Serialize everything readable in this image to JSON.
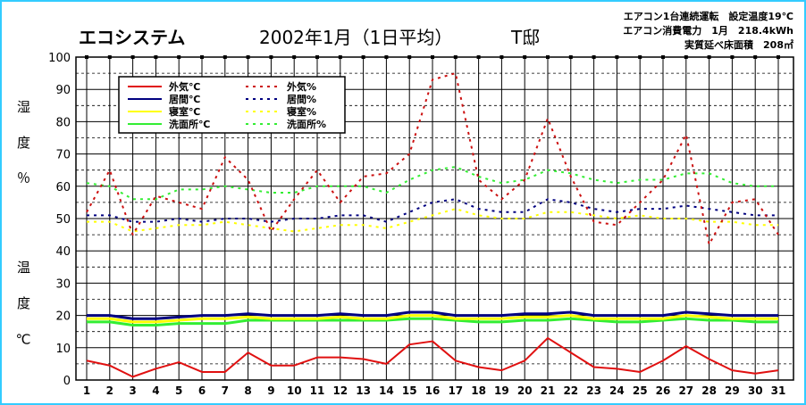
{
  "header": {
    "brand": "エコシステム",
    "title": "2002年1月（1日平均）",
    "house": "T邸",
    "notes": [
      "エアコン1台連続運転　設定温度19℃",
      "エアコン消費電力　1月　218.4kWh",
      "実質延べ床面積　208㎡"
    ]
  },
  "chart_data": {
    "type": "line",
    "ylabel_top": "湿 度 ％",
    "ylabel_bottom": "温 度 ℃",
    "ylim": [
      0,
      100
    ],
    "yticks": [
      0,
      10,
      20,
      30,
      40,
      50,
      60,
      70,
      80,
      90,
      100
    ],
    "x": [
      1,
      2,
      3,
      4,
      5,
      6,
      7,
      8,
      9,
      10,
      11,
      12,
      13,
      14,
      15,
      16,
      17,
      18,
      19,
      20,
      21,
      22,
      23,
      24,
      25,
      26,
      27,
      28,
      29,
      30,
      31
    ],
    "grid": true,
    "legend_position": "top-left",
    "series": [
      {
        "name": "外気℃",
        "kind": "temperature",
        "style": "solid",
        "color": "#e01010",
        "values": [
          6,
          4.5,
          1,
          3.5,
          5.5,
          2.5,
          2.5,
          8.5,
          4.5,
          4.5,
          7,
          7,
          6.5,
          5,
          11,
          12,
          6,
          4,
          3,
          6,
          13,
          8.5,
          4,
          3.5,
          2.5,
          6,
          10.5,
          6.5,
          3,
          2,
          3
        ]
      },
      {
        "name": "居間℃",
        "kind": "temperature",
        "style": "solid",
        "color": "#000080",
        "values": [
          20,
          20,
          19,
          19,
          19.5,
          20,
          20,
          20.5,
          20,
          20,
          20,
          20.5,
          20,
          20,
          21,
          21,
          20,
          20,
          20,
          20.5,
          20.5,
          21,
          20,
          20,
          20,
          20,
          21,
          20.5,
          20,
          20,
          20
        ]
      },
      {
        "name": "寝室℃",
        "kind": "temperature",
        "style": "solid",
        "color": "#ffff00",
        "values": [
          19,
          19,
          18,
          18,
          18.5,
          19,
          19,
          19.5,
          19,
          19,
          19,
          19.5,
          19,
          19,
          20,
          20,
          19,
          19,
          19,
          19.5,
          19.5,
          20,
          19,
          19,
          19,
          19,
          20,
          19.5,
          19,
          19,
          19
        ]
      },
      {
        "name": "洗面所℃",
        "kind": "temperature",
        "style": "solid",
        "color": "#33ee33",
        "values": [
          18,
          18,
          17,
          17,
          17.5,
          17.5,
          17.5,
          18.5,
          18.5,
          18.5,
          18.5,
          18.5,
          18.5,
          18.5,
          19,
          19,
          18.5,
          18,
          18,
          18.5,
          18.5,
          19,
          18.5,
          18,
          18,
          18.5,
          19,
          18.5,
          18.5,
          18,
          18
        ]
      },
      {
        "name": "外気%",
        "kind": "humidity",
        "style": "dotted",
        "color": "#cc1010",
        "values": [
          52,
          65,
          45,
          57,
          55,
          53,
          69,
          62,
          46,
          56,
          65,
          55,
          63,
          64,
          70,
          93,
          95,
          62,
          56,
          62,
          81,
          63,
          49,
          48,
          55,
          62,
          76,
          42,
          55,
          56,
          45
        ]
      },
      {
        "name": "居間%",
        "kind": "humidity",
        "style": "dotted",
        "color": "#000080",
        "values": [
          51,
          51,
          49,
          49,
          50,
          49,
          50,
          50,
          49,
          50,
          50,
          51,
          51,
          49,
          52,
          55,
          56,
          53,
          52,
          52,
          56,
          55,
          53,
          52,
          53,
          53,
          54,
          53,
          52,
          51,
          51
        ]
      },
      {
        "name": "寝室%",
        "kind": "humidity",
        "style": "dotted",
        "color": "#ffff00",
        "values": [
          49,
          49,
          46,
          47,
          48,
          48,
          49,
          48,
          47,
          46,
          47,
          48,
          48,
          47,
          49,
          51,
          53,
          51,
          50,
          50,
          52,
          52,
          51,
          50,
          51,
          50,
          50,
          49,
          49,
          48,
          48
        ]
      },
      {
        "name": "洗面所%",
        "kind": "humidity",
        "style": "dotted",
        "color": "#33ee33",
        "values": [
          61,
          60,
          56,
          56,
          59,
          59,
          60,
          59,
          58,
          58,
          60,
          60,
          60,
          58,
          62,
          65,
          66,
          63,
          61,
          62,
          65,
          64,
          62,
          61,
          62,
          62,
          64,
          64,
          61,
          60,
          60
        ]
      }
    ]
  }
}
